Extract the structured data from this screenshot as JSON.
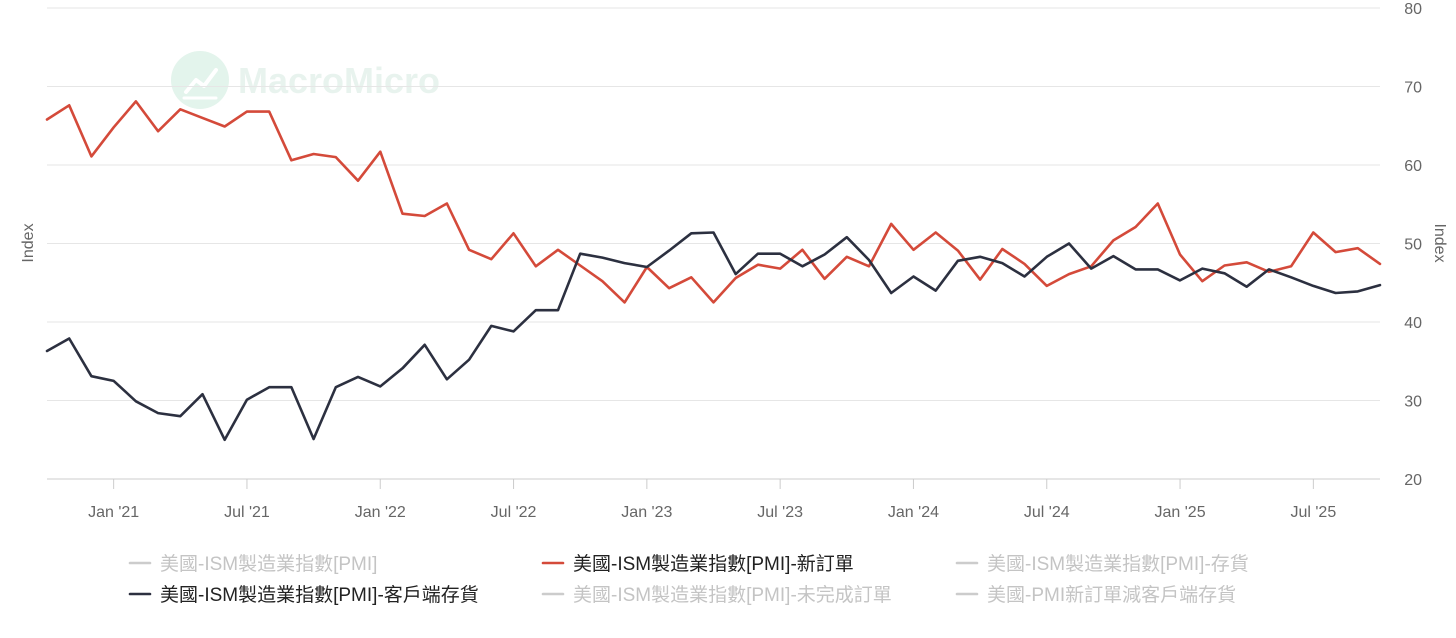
{
  "watermark": {
    "text": "MacroMicro"
  },
  "chart_data": {
    "type": "line",
    "left_axis_title": "Index",
    "right_axis_title": "Index",
    "ylim": [
      20,
      80
    ],
    "yticks": [
      20,
      30,
      40,
      50,
      60,
      70,
      80
    ],
    "xlim": [
      "2020-10",
      "2025-10"
    ],
    "xticks": [
      {
        "date": "2021-01",
        "label": "Jan '21"
      },
      {
        "date": "2021-07",
        "label": "Jul '21"
      },
      {
        "date": "2022-01",
        "label": "Jan '22"
      },
      {
        "date": "2022-07",
        "label": "Jul '22"
      },
      {
        "date": "2023-01",
        "label": "Jan '23"
      },
      {
        "date": "2023-07",
        "label": "Jul '23"
      },
      {
        "date": "2024-01",
        "label": "Jan '24"
      },
      {
        "date": "2024-07",
        "label": "Jul '24"
      },
      {
        "date": "2025-01",
        "label": "Jan '25"
      },
      {
        "date": "2025-07",
        "label": "Jul '25"
      }
    ],
    "x": [
      "2020-10",
      "2020-11",
      "2020-12",
      "2021-01",
      "2021-02",
      "2021-03",
      "2021-04",
      "2021-05",
      "2021-06",
      "2021-07",
      "2021-08",
      "2021-09",
      "2021-10",
      "2021-11",
      "2021-12",
      "2022-01",
      "2022-02",
      "2022-03",
      "2022-04",
      "2022-05",
      "2022-06",
      "2022-07",
      "2022-08",
      "2022-09",
      "2022-10",
      "2022-11",
      "2022-12",
      "2023-01",
      "2023-02",
      "2023-03",
      "2023-04",
      "2023-05",
      "2023-06",
      "2023-07",
      "2023-08",
      "2023-09",
      "2023-10",
      "2023-11",
      "2023-12",
      "2024-01",
      "2024-02",
      "2024-03",
      "2024-04",
      "2024-05",
      "2024-06",
      "2024-07",
      "2024-08",
      "2024-09",
      "2024-10",
      "2024-11",
      "2024-12",
      "2025-01",
      "2025-02",
      "2025-03",
      "2025-04",
      "2025-05",
      "2025-06",
      "2025-07",
      "2025-08",
      "2025-09",
      "2025-10"
    ],
    "series": [
      {
        "name": "美國-ISM製造業指數[PMI]-新訂單",
        "color": "#d44a3a",
        "values": [
          65.8,
          67.6,
          61.1,
          64.8,
          68.1,
          64.3,
          67.1,
          66.0,
          64.9,
          66.8,
          66.8,
          60.6,
          61.4,
          61.0,
          58.0,
          61.7,
          53.8,
          53.5,
          55.1,
          49.2,
          48.0,
          51.3,
          47.1,
          49.2,
          47.2,
          45.2,
          42.5,
          47.0,
          44.3,
          45.7,
          42.5,
          45.6,
          47.3,
          46.8,
          49.2,
          45.5,
          48.3,
          47.1,
          52.5,
          49.2,
          51.4,
          49.1,
          45.4,
          49.3,
          47.4,
          44.6,
          46.1,
          47.1,
          50.4,
          52.1,
          55.1,
          48.6,
          45.2,
          47.2,
          47.6,
          46.4,
          47.1,
          51.4,
          48.9,
          49.4,
          47.4
        ]
      },
      {
        "name": "美國-ISM製造業指數[PMI]-客戶端存貨",
        "color": "#2c3040",
        "values": [
          36.3,
          37.9,
          33.1,
          32.5,
          29.9,
          28.4,
          28.0,
          30.8,
          25.0,
          30.1,
          31.7,
          31.7,
          25.1,
          31.7,
          33.0,
          31.8,
          34.1,
          37.1,
          32.7,
          35.2,
          39.5,
          38.8,
          41.5,
          41.5,
          48.7,
          48.2,
          47.5,
          47.0,
          49.1,
          51.3,
          51.4,
          46.1,
          48.7,
          48.7,
          47.1,
          48.6,
          50.8,
          47.9,
          43.7,
          45.8,
          44.0,
          47.8,
          48.3,
          47.5,
          45.8,
          48.3,
          50.0,
          46.8,
          48.4,
          46.7,
          46.7,
          45.3,
          46.8,
          46.2,
          44.5,
          46.7,
          45.7,
          44.6,
          43.7,
          43.9,
          44.7
        ]
      }
    ],
    "legend": [
      {
        "name": "美國-ISM製造業指數[PMI]",
        "color": "#cccccc",
        "text_color": "#c4c4c4",
        "active": false
      },
      {
        "name": "美國-ISM製造業指數[PMI]-新訂單",
        "color": "#d44a3a",
        "text_color": "#222222",
        "active": true
      },
      {
        "name": "美國-ISM製造業指數[PMI]-存貨",
        "color": "#cccccc",
        "text_color": "#c4c4c4",
        "active": false
      },
      {
        "name": "美國-ISM製造業指數[PMI]-客戶端存貨",
        "color": "#2c3040",
        "text_color": "#222222",
        "active": true
      },
      {
        "name": "美國-ISM製造業指數[PMI]-未完成訂單",
        "color": "#cccccc",
        "text_color": "#c4c4c4",
        "active": false
      },
      {
        "name": "美國-PMI新訂單減客戶端存貨",
        "color": "#cccccc",
        "text_color": "#c4c4c4",
        "active": false
      }
    ],
    "grid": true,
    "legend_position": "bottom"
  }
}
